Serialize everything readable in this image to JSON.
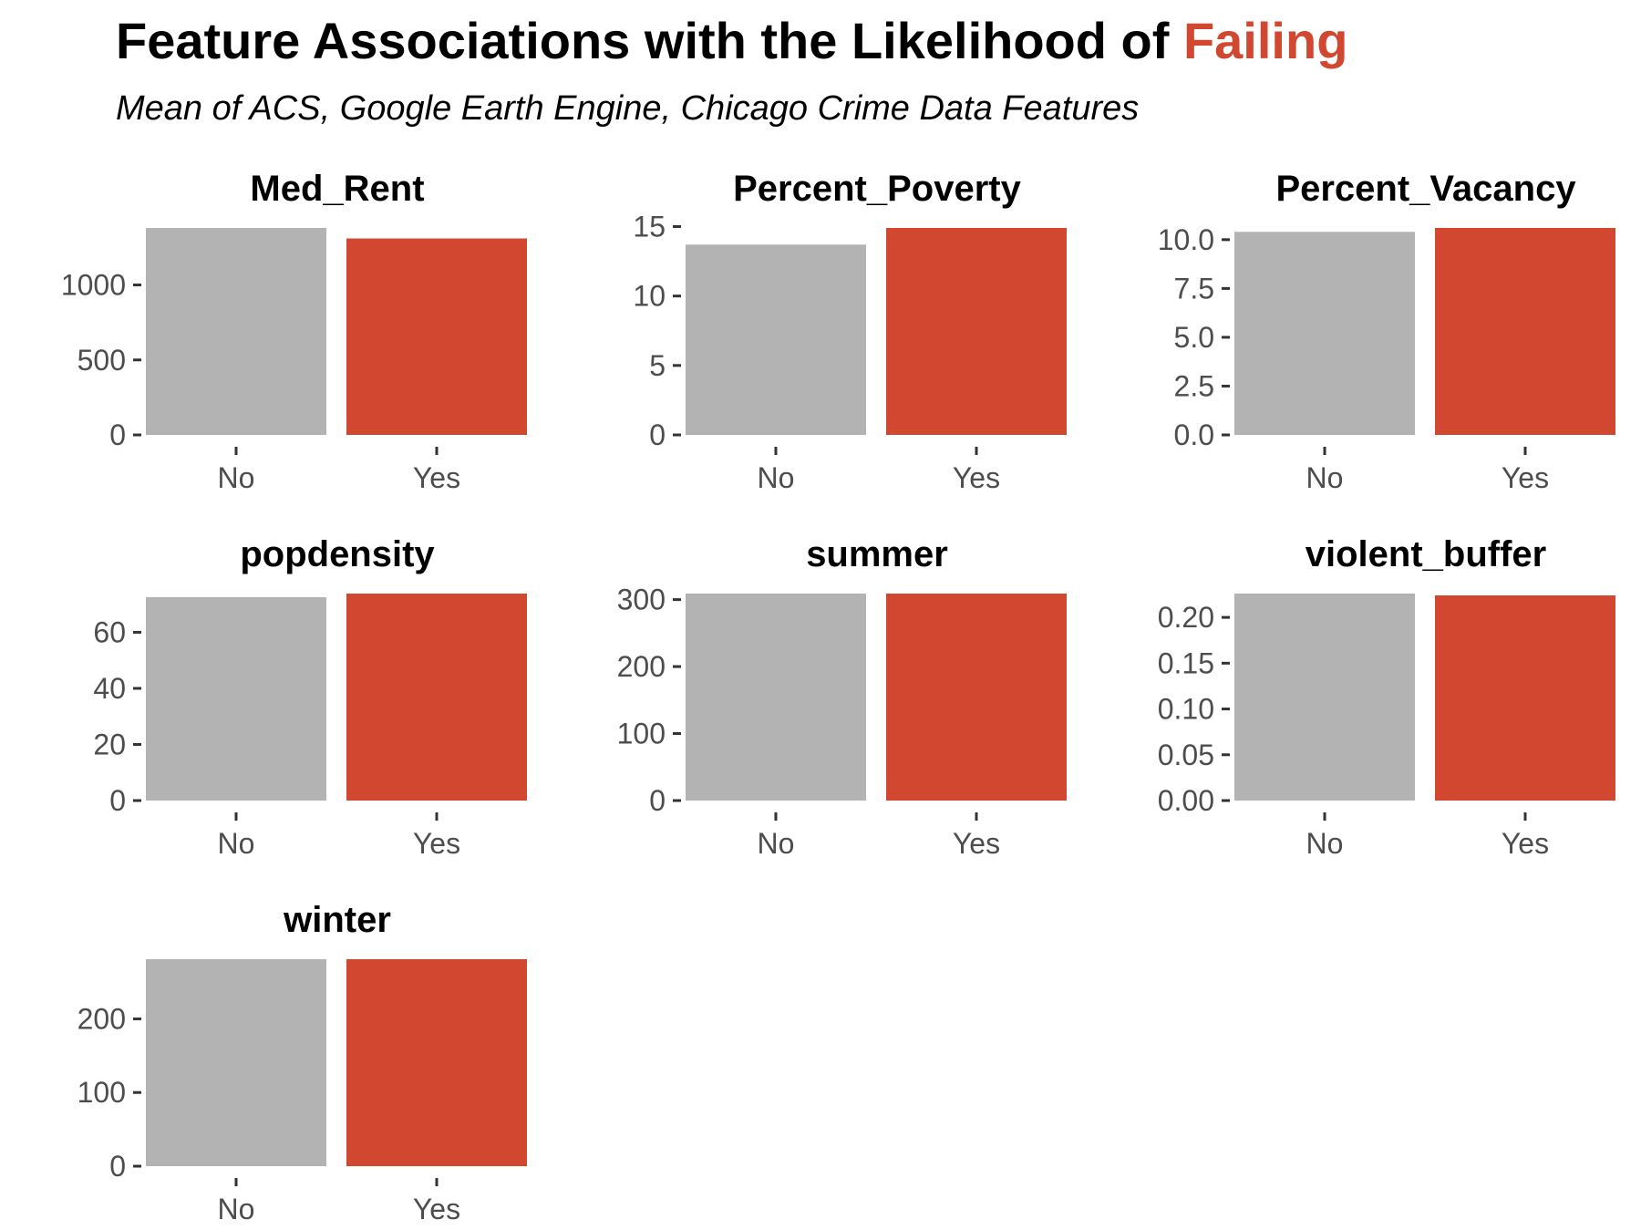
{
  "header": {
    "title_prefix": "Feature Associations with the Likelihood of ",
    "title_highlight": "Failing",
    "subtitle": "Mean of ACS, Google Earth Engine, Chicago Crime Data Features"
  },
  "colors": {
    "no": "#b3b3b3",
    "yes": "#d14730",
    "highlight": "#d14730"
  },
  "chart_data": [
    {
      "type": "bar",
      "title": "Med_Rent",
      "categories": [
        "No",
        "Yes"
      ],
      "values": [
        1380,
        1310
      ],
      "ylim": [
        0,
        1380
      ],
      "yticks": [
        0,
        500,
        1000
      ],
      "ytick_labels": [
        "0",
        "500",
        "1000"
      ],
      "grid": false
    },
    {
      "type": "bar",
      "title": "Percent_Poverty",
      "categories": [
        "No",
        "Yes"
      ],
      "values": [
        13.7,
        14.9
      ],
      "ylim": [
        0,
        14.9
      ],
      "yticks": [
        0,
        5,
        10,
        15
      ],
      "ytick_labels": [
        "0",
        "5",
        "10",
        "15"
      ],
      "grid": false
    },
    {
      "type": "bar",
      "title": "Percent_Vacancy",
      "categories": [
        "No",
        "Yes"
      ],
      "values": [
        10.4,
        10.6
      ],
      "ylim": [
        0,
        10.6
      ],
      "yticks": [
        0,
        2.5,
        5,
        7.5,
        10
      ],
      "ytick_labels": [
        "0.0",
        "2.5",
        "5.0",
        "7.5",
        "10.0"
      ],
      "grid": false
    },
    {
      "type": "bar",
      "title": "popdensity",
      "categories": [
        "No",
        "Yes"
      ],
      "values": [
        72.5,
        73.8
      ],
      "ylim": [
        0,
        73.8
      ],
      "yticks": [
        0,
        20,
        40,
        60
      ],
      "ytick_labels": [
        "0",
        "20",
        "40",
        "60"
      ],
      "grid": false
    },
    {
      "type": "bar",
      "title": "summer",
      "categories": [
        "No",
        "Yes"
      ],
      "values": [
        309,
        309
      ],
      "ylim": [
        0,
        309
      ],
      "yticks": [
        0,
        100,
        200,
        300
      ],
      "ytick_labels": [
        "0",
        "100",
        "200",
        "300"
      ],
      "grid": false
    },
    {
      "type": "bar",
      "title": "violent_buffer",
      "categories": [
        "No",
        "Yes"
      ],
      "values": [
        0.226,
        0.224
      ],
      "ylim": [
        0,
        0.226
      ],
      "yticks": [
        0,
        0.05,
        0.1,
        0.15,
        0.2
      ],
      "ytick_labels": [
        "0.00",
        "0.05",
        "0.10",
        "0.15",
        "0.20"
      ],
      "grid": false
    },
    {
      "type": "bar",
      "title": "winter",
      "categories": [
        "No",
        "Yes"
      ],
      "values": [
        281,
        281
      ],
      "ylim": [
        0,
        281
      ],
      "yticks": [
        0,
        100,
        200
      ],
      "ytick_labels": [
        "0",
        "100",
        "200"
      ],
      "grid": false
    }
  ]
}
